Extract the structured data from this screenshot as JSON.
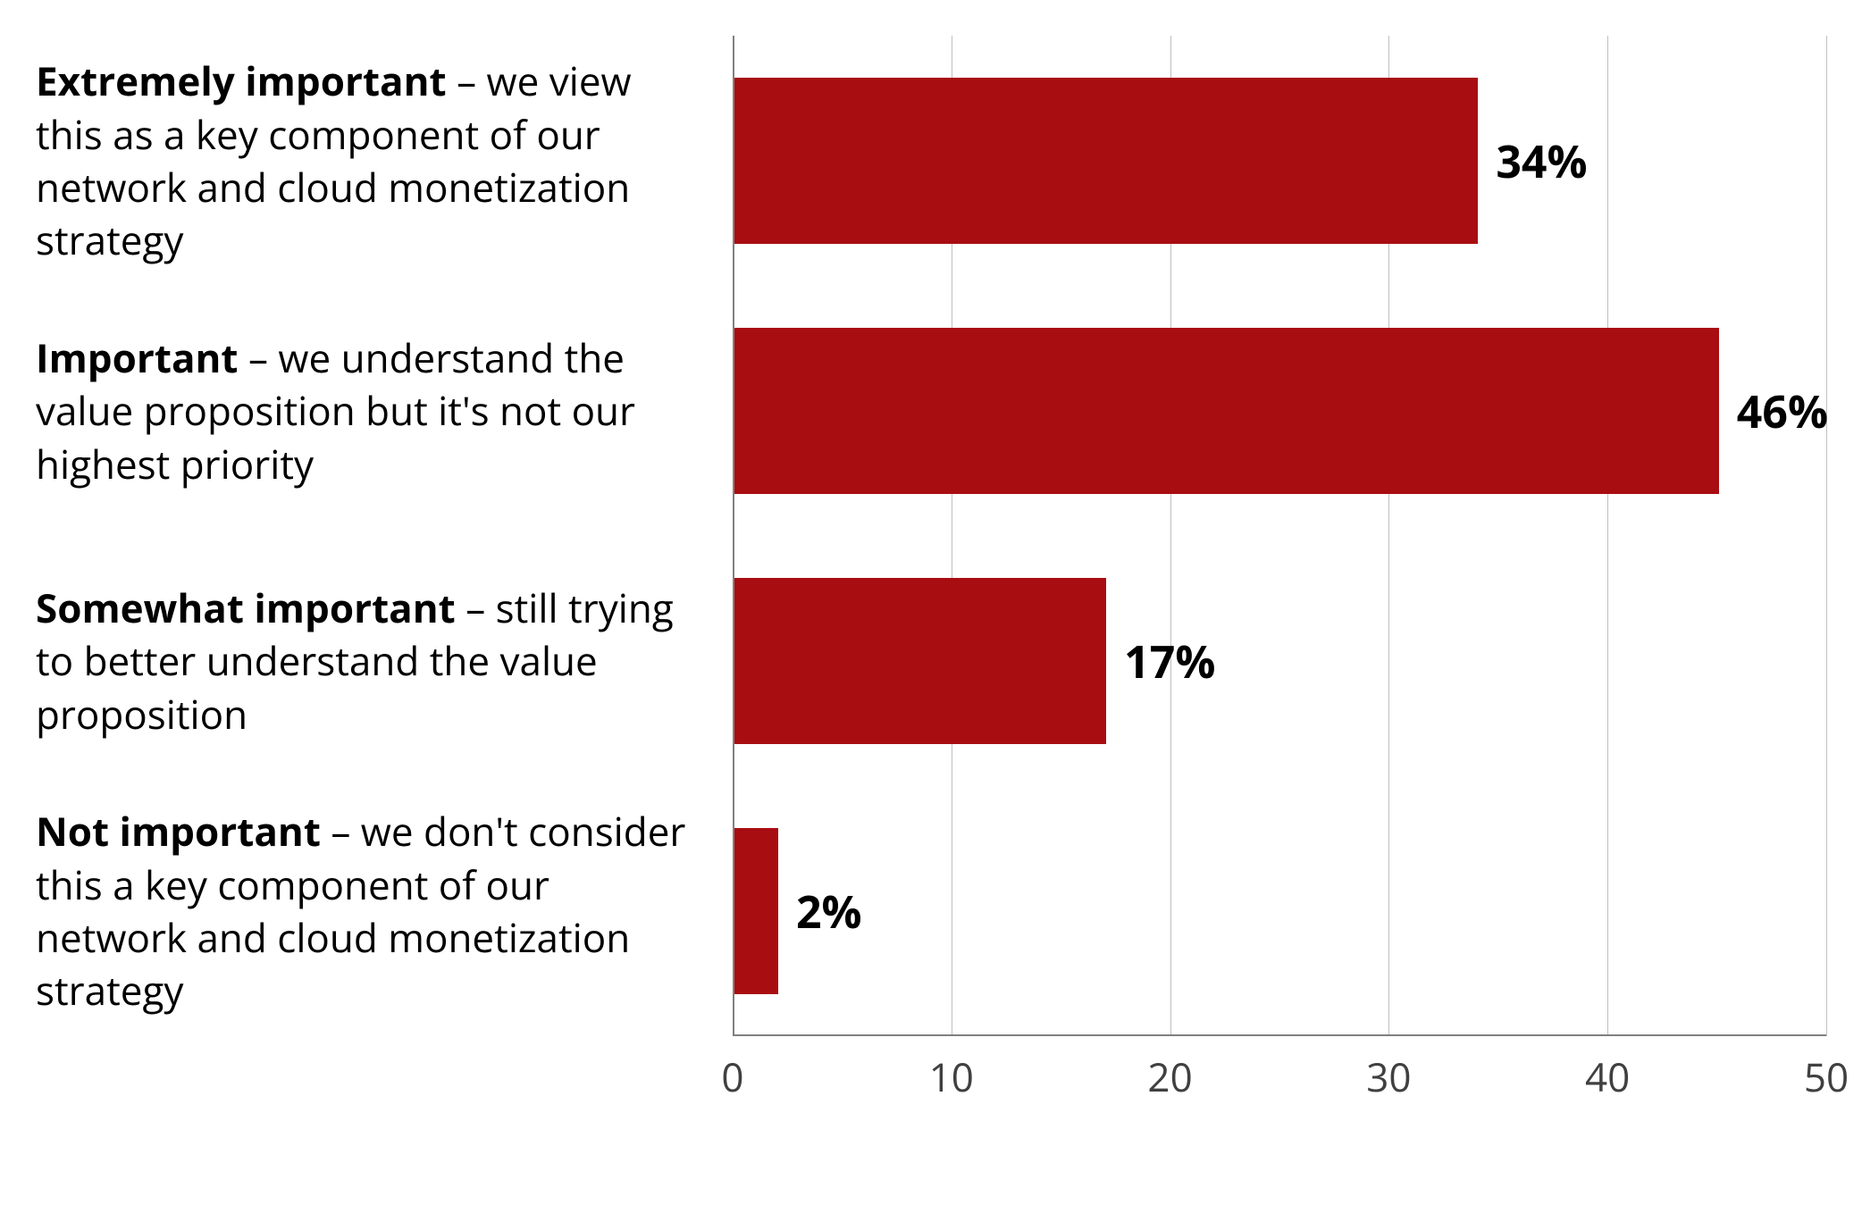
{
  "chart": {
    "type": "bar-horizontal",
    "background_color": "#ffffff",
    "bar_color": "#a80d12",
    "grid_color": "#bfbfbf",
    "axis_color": "#808080",
    "text_color": "#000000",
    "tick_color": "#404040",
    "value_fontsize": 50,
    "label_fontsize": 44,
    "tick_fontsize": 44,
    "xlim": [
      0,
      50
    ],
    "xticks": [
      0,
      10,
      20,
      30,
      40,
      50
    ],
    "bar_height_ratio": 0.665,
    "categories": [
      {
        "bold": "Extremely important",
        "rest": " – we view this as a key component of our network and cloud monetization strategy",
        "value": 34,
        "value_label": "34%"
      },
      {
        "bold": "Important",
        "rest": " – we understand the value proposition but it's not our highest priority",
        "value": 46,
        "value_label": "46%"
      },
      {
        "bold": "Somewhat important",
        "rest": " – still trying to better understand the value proposition",
        "value": 17,
        "value_label": "17%"
      },
      {
        "bold": "Not important",
        "rest": " – we don't consider this a key component of our network and cloud monetization strategy",
        "value": 2,
        "value_label": "2%"
      }
    ]
  }
}
